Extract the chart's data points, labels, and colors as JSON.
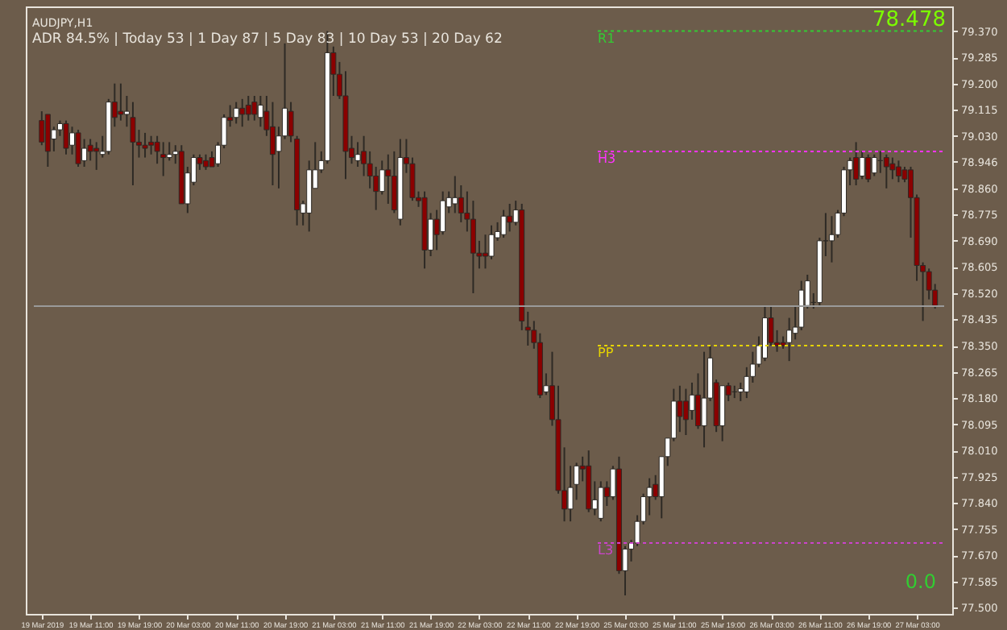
{
  "chart_data": {
    "type": "candlestick",
    "title": "AUDJPY,H1",
    "subtitle": "ADR 84.5% | Today 53 | 1 Day 87 | 5 Day 83 | 10 Day 53 | 20 Day 62",
    "categories": [
      "19 Mar 2019",
      null,
      null,
      null,
      null,
      null,
      null,
      null,
      "19 Mar 11:00",
      null,
      null,
      null,
      null,
      null,
      null,
      null,
      "19 Mar 19:00",
      null,
      null,
      null,
      null,
      null,
      null,
      null,
      "20 Mar 03:00",
      null,
      null,
      null,
      null,
      null,
      null,
      null,
      "20 Mar 11:00",
      null,
      null,
      null,
      null,
      null,
      null,
      null,
      "20 Mar 19:00",
      null,
      null,
      null,
      null,
      null,
      null,
      null,
      "21 Mar 03:00",
      null,
      null,
      null,
      null,
      null,
      null,
      null,
      "21 Mar 11:00",
      null,
      null,
      null,
      null,
      null,
      null,
      null,
      "21 Mar 19:00",
      null,
      null,
      null,
      null,
      null,
      null,
      null,
      "22 Mar 03:00",
      null,
      null,
      null,
      null,
      null,
      null,
      null,
      "22 Mar 11:00",
      null,
      null,
      null,
      null,
      null,
      null,
      null,
      "22 Mar 19:00",
      null,
      null,
      null,
      null,
      null,
      null,
      null,
      "25 Mar 03:00",
      null,
      null,
      null,
      null,
      null,
      null,
      null,
      "25 Mar 11:00",
      null,
      null,
      null,
      null,
      null,
      null,
      null,
      "25 Mar 19:00",
      null,
      null,
      null,
      null,
      null,
      null,
      null,
      "26 Mar 03:00",
      null,
      null,
      null,
      null,
      null,
      null,
      null,
      "26 Mar 11:00",
      null,
      null,
      null,
      null,
      null,
      null,
      null,
      "26 Mar 19:00",
      null,
      null,
      null,
      null,
      null,
      null,
      null,
      "27 Mar 03:00",
      null,
      null,
      null
    ],
    "ohlc": [
      [
        79.08,
        79.11,
        79.0,
        79.01
      ],
      [
        79.1,
        79.1,
        78.93,
        78.98
      ],
      [
        79.02,
        79.06,
        78.98,
        79.05
      ],
      [
        79.05,
        79.08,
        79.03,
        79.07
      ],
      [
        79.07,
        79.08,
        78.97,
        78.99
      ],
      [
        79.0,
        79.06,
        78.97,
        79.04
      ],
      [
        79.04,
        79.05,
        78.93,
        78.94
      ],
      [
        78.95,
        79.02,
        78.93,
        78.99
      ],
      [
        79.0,
        79.02,
        78.95,
        78.98
      ],
      [
        78.99,
        79.01,
        78.92,
        78.98
      ],
      [
        78.97,
        79.03,
        78.96,
        78.98
      ],
      [
        78.98,
        79.15,
        78.97,
        79.14
      ],
      [
        79.14,
        79.2,
        79.06,
        79.09
      ],
      [
        79.11,
        79.2,
        79.08,
        79.1
      ],
      [
        79.1,
        79.16,
        79.06,
        79.11
      ],
      [
        79.09,
        79.14,
        78.87,
        79.01
      ],
      [
        79.01,
        79.05,
        78.96,
        79.0
      ],
      [
        79.0,
        79.04,
        78.96,
        78.99
      ],
      [
        79.01,
        79.03,
        78.97,
        79.0
      ],
      [
        79.01,
        79.03,
        78.94,
        78.98
      ],
      [
        78.97,
        79.01,
        78.9,
        78.96
      ],
      [
        78.96,
        79.01,
        78.95,
        78.97
      ],
      [
        78.97,
        79.0,
        78.94,
        78.98
      ],
      [
        78.98,
        79.0,
        78.81,
        78.81
      ],
      [
        78.81,
        78.93,
        78.78,
        78.91
      ],
      [
        78.88,
        78.97,
        78.87,
        78.96
      ],
      [
        78.96,
        78.97,
        78.92,
        78.94
      ],
      [
        78.95,
        78.97,
        78.92,
        78.93
      ],
      [
        78.96,
        78.98,
        78.93,
        78.93
      ],
      [
        78.94,
        79.01,
        78.93,
        79.0
      ],
      [
        79.0,
        79.1,
        78.99,
        79.09
      ],
      [
        79.09,
        79.13,
        79.06,
        79.08
      ],
      [
        79.09,
        79.14,
        79.07,
        79.12
      ],
      [
        79.12,
        79.15,
        79.06,
        79.1
      ],
      [
        79.13,
        79.16,
        79.08,
        79.1
      ],
      [
        79.14,
        79.16,
        79.08,
        79.1
      ],
      [
        79.09,
        79.16,
        79.06,
        79.13
      ],
      [
        79.11,
        79.16,
        79.03,
        79.05
      ],
      [
        79.06,
        79.14,
        78.87,
        78.97
      ],
      [
        78.98,
        79.06,
        78.86,
        79.03
      ],
      [
        79.03,
        79.33,
        79.02,
        79.12
      ],
      [
        79.11,
        79.14,
        79.01,
        79.03
      ],
      [
        79.02,
        79.03,
        78.74,
        78.79
      ],
      [
        78.78,
        78.82,
        78.74,
        78.81
      ],
      [
        78.78,
        78.95,
        78.72,
        78.92
      ],
      [
        78.86,
        79.01,
        78.86,
        78.92
      ],
      [
        78.92,
        78.98,
        78.91,
        78.95
      ],
      [
        78.95,
        79.37,
        78.94,
        79.3
      ],
      [
        79.3,
        79.32,
        79.16,
        79.23
      ],
      [
        79.23,
        79.27,
        79.15,
        79.16
      ],
      [
        79.16,
        79.24,
        78.89,
        78.98
      ],
      [
        78.99,
        79.03,
        78.94,
        78.96
      ],
      [
        78.95,
        79.01,
        78.93,
        78.97
      ],
      [
        78.98,
        79.03,
        78.9,
        78.94
      ],
      [
        78.94,
        78.98,
        78.86,
        78.9
      ],
      [
        78.9,
        78.93,
        78.79,
        78.85
      ],
      [
        78.85,
        78.95,
        78.84,
        78.92
      ],
      [
        78.92,
        78.97,
        78.81,
        78.9
      ],
      [
        78.9,
        78.98,
        78.78,
        78.79
      ],
      [
        78.76,
        79.02,
        78.74,
        78.96
      ],
      [
        78.96,
        79.02,
        78.91,
        78.94
      ],
      [
        78.94,
        78.96,
        78.82,
        78.83
      ],
      [
        78.83,
        78.85,
        78.8,
        78.82
      ],
      [
        78.83,
        78.85,
        78.6,
        78.66
      ],
      [
        78.66,
        78.78,
        78.64,
        78.76
      ],
      [
        78.76,
        78.79,
        78.66,
        78.71
      ],
      [
        78.72,
        78.85,
        78.71,
        78.82
      ],
      [
        78.8,
        78.85,
        78.78,
        78.83
      ],
      [
        78.81,
        78.9,
        78.78,
        78.83
      ],
      [
        78.83,
        78.87,
        78.75,
        78.78
      ],
      [
        78.78,
        78.85,
        78.72,
        78.76
      ],
      [
        78.76,
        78.82,
        78.52,
        78.65
      ],
      [
        78.65,
        78.69,
        78.6,
        78.64
      ],
      [
        78.65,
        78.71,
        78.6,
        78.64
      ],
      [
        78.64,
        78.74,
        78.63,
        78.71
      ],
      [
        78.7,
        78.75,
        78.69,
        78.72
      ],
      [
        78.71,
        78.79,
        78.7,
        78.77
      ],
      [
        78.77,
        78.81,
        78.72,
        78.75
      ],
      [
        78.75,
        78.82,
        78.74,
        78.79
      ],
      [
        78.79,
        78.81,
        78.4,
        78.43
      ],
      [
        78.41,
        78.46,
        78.35,
        78.4
      ],
      [
        78.4,
        78.43,
        78.34,
        78.36
      ],
      [
        78.36,
        78.39,
        78.18,
        78.19
      ],
      [
        78.2,
        78.26,
        78.19,
        78.22
      ],
      [
        78.22,
        78.33,
        78.09,
        78.11
      ],
      [
        78.11,
        78.22,
        77.87,
        77.88
      ],
      [
        77.88,
        78.02,
        77.78,
        77.82
      ],
      [
        77.82,
        77.96,
        77.78,
        77.89
      ],
      [
        77.9,
        77.97,
        77.85,
        77.96
      ],
      [
        77.96,
        77.99,
        77.91,
        77.95
      ],
      [
        77.96,
        78.01,
        77.81,
        77.82
      ],
      [
        77.82,
        77.91,
        77.8,
        77.85
      ],
      [
        77.79,
        77.91,
        77.78,
        77.89
      ],
      [
        77.89,
        77.91,
        77.83,
        77.86
      ],
      [
        77.86,
        77.96,
        77.85,
        77.95
      ],
      [
        77.95,
        77.99,
        77.61,
        77.62
      ],
      [
        77.62,
        77.7,
        77.54,
        77.69
      ],
      [
        77.69,
        77.72,
        77.65,
        77.71
      ],
      [
        77.71,
        77.8,
        77.7,
        77.78
      ],
      [
        77.78,
        77.87,
        77.77,
        77.86
      ],
      [
        77.86,
        77.92,
        77.8,
        77.89
      ],
      [
        77.9,
        77.93,
        77.85,
        77.86
      ],
      [
        77.86,
        77.99,
        77.79,
        77.99
      ],
      [
        77.99,
        78.05,
        77.96,
        78.05
      ],
      [
        78.05,
        78.21,
        78.04,
        78.17
      ],
      [
        78.17,
        78.22,
        78.07,
        78.12
      ],
      [
        78.17,
        78.21,
        78.06,
        78.11
      ],
      [
        78.14,
        78.23,
        78.11,
        78.19
      ],
      [
        78.19,
        78.26,
        78.08,
        78.09
      ],
      [
        78.09,
        78.33,
        78.02,
        78.18
      ],
      [
        78.18,
        78.35,
        78.17,
        78.31
      ],
      [
        78.23,
        78.24,
        78.07,
        78.09
      ],
      [
        78.09,
        78.22,
        78.04,
        78.22
      ],
      [
        78.22,
        78.23,
        78.17,
        78.19
      ],
      [
        78.2,
        78.22,
        78.18,
        78.2
      ],
      [
        78.2,
        78.23,
        78.17,
        78.21
      ],
      [
        78.2,
        78.28,
        78.18,
        78.25
      ],
      [
        78.25,
        78.33,
        78.23,
        78.29
      ],
      [
        78.29,
        78.38,
        78.28,
        78.35
      ],
      [
        78.31,
        78.48,
        78.3,
        78.44
      ],
      [
        78.44,
        78.48,
        78.35,
        78.36
      ],
      [
        78.36,
        78.4,
        78.33,
        78.35
      ],
      [
        78.36,
        78.38,
        78.34,
        78.35
      ],
      [
        78.36,
        78.44,
        78.3,
        78.4
      ],
      [
        78.39,
        78.48,
        78.37,
        78.41
      ],
      [
        78.41,
        78.56,
        78.4,
        78.53
      ],
      [
        78.48,
        78.58,
        78.47,
        78.56
      ],
      [
        78.49,
        78.52,
        78.47,
        78.49
      ],
      [
        78.49,
        78.7,
        78.48,
        78.69
      ],
      [
        78.69,
        78.78,
        78.64,
        78.69
      ],
      [
        78.69,
        78.77,
        78.62,
        78.71
      ],
      [
        78.71,
        78.79,
        78.7,
        78.78
      ],
      [
        78.78,
        78.93,
        78.77,
        78.92
      ],
      [
        78.92,
        78.96,
        78.87,
        78.95
      ],
      [
        78.96,
        79.01,
        78.87,
        78.89
      ],
      [
        78.9,
        78.98,
        78.89,
        78.96
      ],
      [
        78.96,
        78.97,
        78.88,
        78.89
      ],
      [
        78.91,
        78.97,
        78.9,
        78.96
      ],
      [
        78.95,
        78.98,
        78.91,
        78.95
      ],
      [
        78.96,
        78.97,
        78.86,
        78.93
      ],
      [
        78.94,
        78.96,
        78.89,
        78.92
      ],
      [
        78.93,
        78.95,
        78.88,
        78.9
      ],
      [
        78.92,
        78.93,
        78.88,
        78.89
      ],
      [
        78.92,
        78.93,
        78.7,
        78.83
      ],
      [
        78.83,
        78.84,
        78.56,
        78.61
      ],
      [
        78.61,
        78.62,
        78.43,
        78.59
      ],
      [
        78.59,
        78.6,
        78.5,
        78.53
      ],
      [
        78.53,
        78.55,
        78.47,
        78.48
      ]
    ],
    "ylim": [
      77.48,
      79.45
    ],
    "yticks": [
      {
        "value": 77.5,
        "label": "77.500"
      },
      77.585,
      {
        "value": 77.67,
        "label": "77.670"
      },
      77.755,
      {
        "value": 77.84,
        "label": "77.840"
      },
      77.925,
      {
        "value": 78.01,
        "label": "78.010"
      },
      78.095,
      {
        "value": 78.18,
        "label": "78.180"
      },
      78.265,
      {
        "value": 78.35,
        "label": "78.350"
      },
      78.435,
      {
        "value": 78.52,
        "label": "78.520"
      },
      78.605,
      {
        "value": 78.69,
        "label": "78.690"
      },
      78.775,
      {
        "value": 78.86,
        "label": "78.860"
      },
      78.946,
      {
        "value": 79.03,
        "label": "79.030"
      },
      79.115,
      {
        "value": 79.2,
        "label": "79.200"
      },
      79.285,
      {
        "value": 79.37,
        "label": "79.370"
      }
    ],
    "ref_lines": [
      {
        "axis": "y",
        "value": 79.37,
        "label": "R1",
        "color": "#33cc33",
        "line_style": "dotted"
      },
      {
        "axis": "y",
        "value": 78.98,
        "label": "H3",
        "color": "#ff33ff",
        "line_style": "dotted"
      },
      {
        "axis": "y",
        "value": 78.35,
        "label": "PP",
        "color": "#e6d400",
        "line_style": "dotted"
      },
      {
        "axis": "y",
        "value": 77.71,
        "label": "L3",
        "color": "#cc44cc",
        "line_style": "dotted"
      },
      {
        "axis": "y",
        "value": 78.478,
        "label": null,
        "color": "#9a9a9a",
        "line_style": "solid"
      }
    ],
    "annotations": [
      "78.478",
      "0.0"
    ],
    "grid": false
  }
}
